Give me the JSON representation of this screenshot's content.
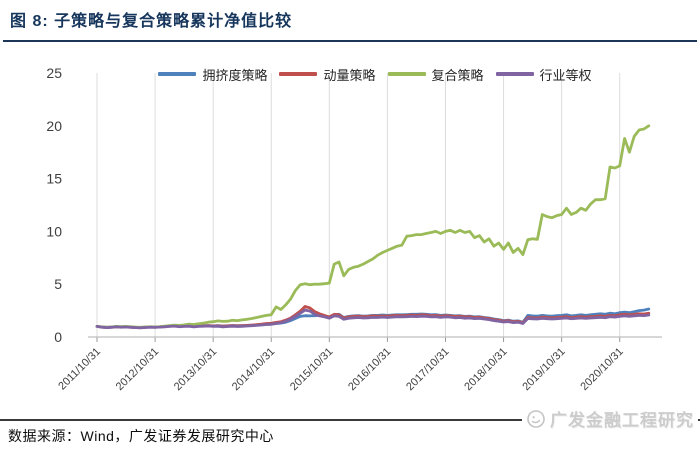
{
  "figure": {
    "title": "图 8: 子策略与复合策略累计净值比较",
    "source": "数据来源：Wind，广发证券发展研究中心",
    "watermark": "广发金融工程研究"
  },
  "colors": {
    "title_navy": "#16365C",
    "axis_text": "#3F3F3F",
    "gridline": "#DCDCDC",
    "axis_line": "#BFBFBF",
    "watermark_gray": "#cccccc"
  },
  "chart_data": {
    "type": "line",
    "title": "子策略与复合策略累计净值比较",
    "xlabel": "",
    "ylabel": "",
    "ylim": [
      0,
      25
    ],
    "yticks": [
      0,
      5,
      10,
      15,
      20,
      25
    ],
    "grid": "vertical-only",
    "legend_position": "top",
    "x_unit": "month",
    "x_start": "2011/10/31",
    "x_end": "2021/04/30",
    "x_tick_labels": [
      "2011/10/31",
      "2012/10/31",
      "2013/10/31",
      "2014/10/31",
      "2015/10/31",
      "2016/10/31",
      "2017/10/31",
      "2018/10/31",
      "2019/10/31",
      "2020/10/31"
    ],
    "draw_order": [
      0,
      1,
      2,
      3
    ],
    "series": [
      {
        "key": "crowding",
        "name": "拥挤度策略",
        "color": "#4F81BD",
        "values": [
          1.0,
          0.96,
          0.92,
          0.95,
          0.99,
          0.96,
          0.98,
          0.95,
          0.92,
          0.91,
          0.93,
          0.96,
          0.95,
          0.97,
          1.0,
          1.03,
          1.05,
          1.02,
          1.03,
          1.06,
          1.02,
          1.05,
          1.06,
          1.08,
          1.05,
          1.07,
          1.04,
          1.06,
          1.09,
          1.07,
          1.08,
          1.1,
          1.12,
          1.15,
          1.18,
          1.2,
          1.22,
          1.28,
          1.32,
          1.4,
          1.55,
          1.75,
          1.95,
          2.02,
          2.0,
          2.02,
          2.05,
          1.95,
          1.85,
          2.1,
          2.15,
          1.85,
          1.95,
          2.0,
          2.02,
          1.98,
          2.0,
          2.05,
          2.05,
          2.08,
          2.05,
          2.08,
          2.1,
          2.1,
          2.12,
          2.15,
          2.15,
          2.18,
          2.15,
          2.1,
          2.12,
          2.05,
          2.08,
          2.05,
          2.0,
          2.02,
          1.95,
          1.98,
          1.9,
          1.92,
          1.85,
          1.8,
          1.7,
          1.65,
          1.55,
          1.6,
          1.5,
          1.52,
          1.4,
          2.05,
          2.0,
          1.98,
          2.05,
          2.0,
          1.98,
          2.02,
          2.05,
          2.1,
          2.0,
          2.05,
          2.1,
          2.05,
          2.1,
          2.15,
          2.2,
          2.15,
          2.25,
          2.2,
          2.3,
          2.35,
          2.3,
          2.4,
          2.5,
          2.55,
          2.65
        ]
      },
      {
        "key": "momentum",
        "name": "动量策略",
        "color": "#C0504D",
        "values": [
          1.0,
          0.94,
          0.9,
          0.93,
          0.97,
          0.94,
          0.96,
          0.93,
          0.9,
          0.89,
          0.92,
          0.95,
          0.93,
          0.96,
          0.99,
          1.02,
          1.05,
          1.0,
          1.02,
          1.05,
          1.0,
          1.03,
          1.05,
          1.07,
          1.04,
          1.06,
          1.02,
          1.05,
          1.08,
          1.05,
          1.07,
          1.1,
          1.13,
          1.17,
          1.22,
          1.28,
          1.3,
          1.38,
          1.45,
          1.6,
          1.8,
          2.1,
          2.45,
          2.9,
          2.75,
          2.4,
          2.2,
          2.05,
          1.9,
          2.15,
          2.1,
          1.8,
          1.9,
          1.95,
          1.98,
          1.92,
          1.95,
          2.0,
          1.98,
          2.0,
          1.98,
          2.02,
          2.05,
          2.02,
          2.05,
          2.08,
          2.05,
          2.1,
          2.08,
          2.02,
          2.05,
          1.98,
          2.02,
          2.0,
          1.95,
          1.98,
          1.9,
          1.92,
          1.85,
          1.88,
          1.8,
          1.75,
          1.65,
          1.6,
          1.5,
          1.55,
          1.45,
          1.48,
          1.35,
          1.85,
          1.82,
          1.8,
          1.88,
          1.85,
          1.82,
          1.85,
          1.88,
          1.92,
          1.85,
          1.88,
          1.92,
          1.88,
          1.92,
          1.95,
          2.0,
          1.95,
          2.05,
          2.0,
          2.1,
          2.15,
          2.1,
          2.15,
          2.2,
          2.18,
          2.25
        ]
      },
      {
        "key": "composite",
        "name": "复合策略",
        "color": "#9BBB59",
        "values": [
          1.0,
          0.96,
          0.93,
          0.95,
          1.0,
          0.98,
          1.0,
          0.97,
          0.94,
          0.92,
          0.95,
          0.97,
          0.95,
          0.98,
          1.02,
          1.08,
          1.12,
          1.1,
          1.15,
          1.22,
          1.18,
          1.25,
          1.32,
          1.4,
          1.45,
          1.52,
          1.48,
          1.5,
          1.58,
          1.55,
          1.62,
          1.68,
          1.75,
          1.85,
          1.95,
          2.05,
          2.1,
          2.85,
          2.6,
          3.05,
          3.6,
          4.4,
          4.95,
          5.05,
          4.95,
          5.0,
          5.0,
          5.05,
          5.1,
          6.9,
          7.1,
          5.8,
          6.4,
          6.6,
          6.7,
          6.9,
          7.15,
          7.4,
          7.75,
          8.0,
          8.2,
          8.4,
          8.6,
          8.7,
          9.55,
          9.6,
          9.7,
          9.7,
          9.8,
          9.9,
          10.0,
          9.8,
          10.0,
          10.1,
          9.9,
          10.1,
          9.9,
          10.0,
          9.4,
          9.6,
          9.0,
          9.3,
          8.6,
          8.9,
          8.3,
          8.9,
          8.0,
          8.4,
          7.8,
          9.2,
          9.3,
          9.25,
          11.6,
          11.4,
          11.3,
          11.5,
          11.6,
          12.2,
          11.6,
          11.8,
          12.2,
          12.0,
          12.6,
          13.0,
          13.0,
          13.1,
          16.1,
          16.0,
          16.2,
          18.8,
          17.5,
          19.0,
          19.6,
          19.7,
          20.0
        ]
      },
      {
        "key": "equal-weight",
        "name": "行业等权",
        "color": "#8064A2",
        "values": [
          1.0,
          0.93,
          0.89,
          0.92,
          0.96,
          0.93,
          0.95,
          0.92,
          0.89,
          0.87,
          0.9,
          0.93,
          0.92,
          0.94,
          0.97,
          1.0,
          1.03,
          0.98,
          1.0,
          1.02,
          0.97,
          1.0,
          1.02,
          1.04,
          1.0,
          1.02,
          0.97,
          0.99,
          1.02,
          0.99,
          1.01,
          1.04,
          1.07,
          1.1,
          1.14,
          1.18,
          1.2,
          1.28,
          1.35,
          1.5,
          1.7,
          1.95,
          2.25,
          2.55,
          2.45,
          2.15,
          2.0,
          1.9,
          1.78,
          2.0,
          1.95,
          1.68,
          1.78,
          1.82,
          1.85,
          1.8,
          1.82,
          1.86,
          1.85,
          1.88,
          1.85,
          1.88,
          1.92,
          1.9,
          1.92,
          1.95,
          1.93,
          1.97,
          1.95,
          1.9,
          1.92,
          1.86,
          1.9,
          1.88,
          1.82,
          1.85,
          1.78,
          1.8,
          1.74,
          1.76,
          1.7,
          1.65,
          1.55,
          1.5,
          1.42,
          1.46,
          1.36,
          1.4,
          1.28,
          1.75,
          1.72,
          1.7,
          1.76,
          1.73,
          1.7,
          1.73,
          1.76,
          1.8,
          1.73,
          1.76,
          1.8,
          1.76,
          1.8,
          1.83,
          1.87,
          1.83,
          1.92,
          1.88,
          1.95,
          2.0,
          1.96,
          2.0,
          2.05,
          2.03,
          2.08
        ]
      }
    ]
  }
}
